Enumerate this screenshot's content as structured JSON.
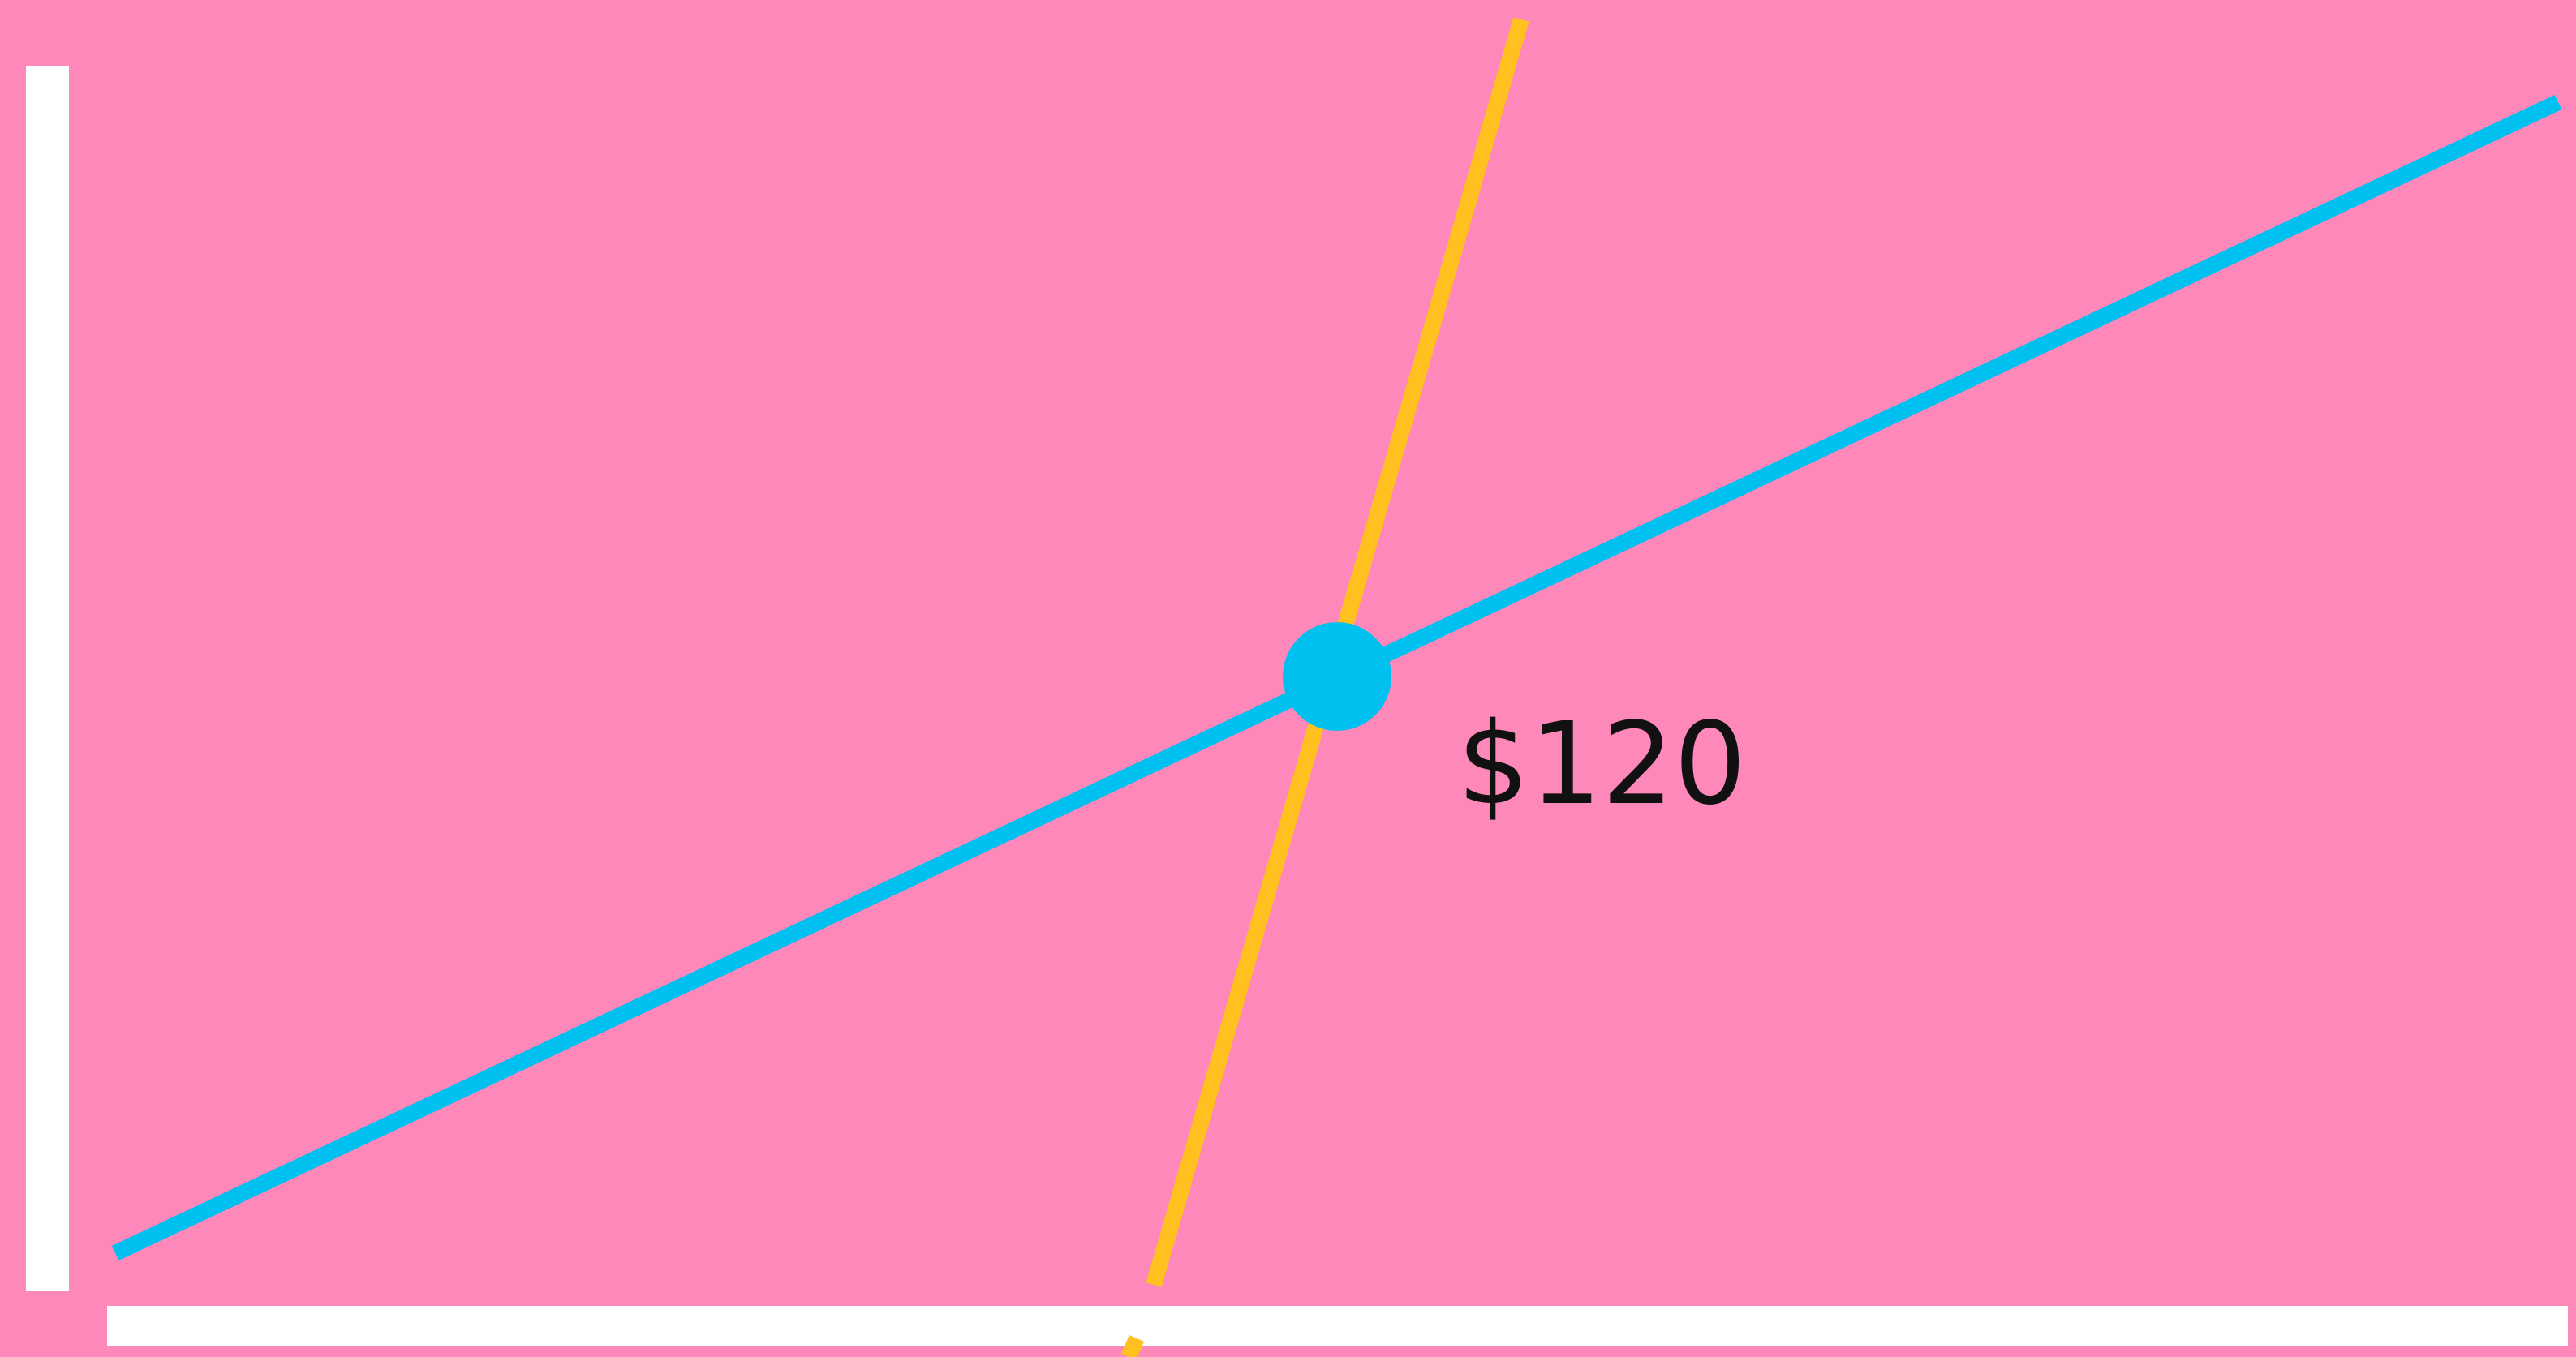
{
  "label": "$120"
}
